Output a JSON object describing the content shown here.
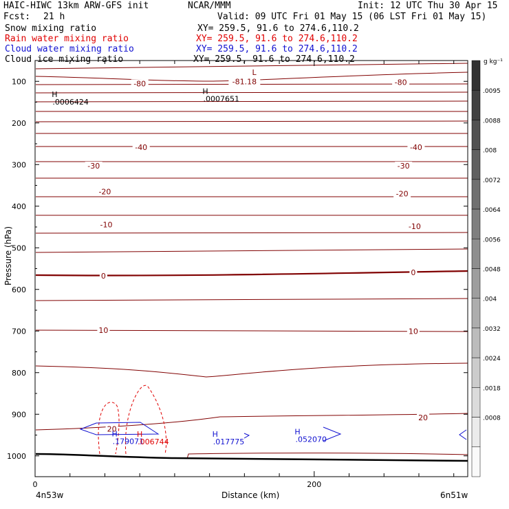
{
  "header": {
    "model": "HAIC-HIWC 13km ARW-GFS init",
    "org": "NCAR/MMM",
    "init": "Init: 12 UTC Thu 30 Apr 15",
    "fcst_label": "Fcst:",
    "fcst_value": "21 h",
    "valid": "Valid: 09 UTC Fri 01 May 15 (06 LST Fri 01 May 15)"
  },
  "fields": [
    {
      "name": "Snow mixing ratio",
      "xy": "XY= 259.5, 91.6 to 274.6,110.2",
      "color": "#000000"
    },
    {
      "name": "Rain water mixing ratio",
      "xy": "XY= 259.5, 91.6 to 274.6,110.2",
      "color": "#e00000"
    },
    {
      "name": "Cloud water mixing ratio",
      "xy": "XY= 259.5, 91.6 to 274.6,110.2",
      "color": "#1010d0"
    },
    {
      "name": "Cloud ice mixing ratio",
      "xy": "XY= 259.5, 91.6 to 274.6,110.2",
      "color": "#000000"
    }
  ],
  "chart_data": {
    "type": "contour cross-section",
    "xlabel": "Distance (km)",
    "ylabel": "Pressure (hPa)",
    "x_ticks": [
      0,
      200
    ],
    "x_range_km": [
      0,
      310
    ],
    "y_ticks": [
      100,
      200,
      300,
      400,
      500,
      600,
      700,
      800,
      900,
      1000
    ],
    "y_range_hPa": [
      1050,
      50
    ],
    "left_endpoint_label": "4n53w",
    "right_endpoint_label": "6n51w",
    "colorbar": {
      "unit": "g kg⁻¹",
      "labels": [
        ".0095",
        ".0088",
        ".008",
        ".0072",
        ".0064",
        ".0056",
        ".0048",
        ".004",
        ".0032",
        ".0024",
        ".0018",
        ".0008"
      ]
    },
    "temperature_contour_labels": [
      {
        "text": "-80",
        "x_km": 75,
        "p_hPa": 105
      },
      {
        "text": "-81.18",
        "x_km": 150,
        "p_hPa": 100
      },
      {
        "text": "-80",
        "x_km": 262,
        "p_hPa": 102
      },
      {
        "text": "-40",
        "x_km": 76,
        "p_hPa": 258
      },
      {
        "text": "-40",
        "x_km": 273,
        "p_hPa": 258
      },
      {
        "text": "-30",
        "x_km": 42,
        "p_hPa": 303
      },
      {
        "text": "-30",
        "x_km": 264,
        "p_hPa": 303
      },
      {
        "text": "-20",
        "x_km": 50,
        "p_hPa": 365
      },
      {
        "text": "-20",
        "x_km": 263,
        "p_hPa": 370
      },
      {
        "text": "-10",
        "x_km": 51,
        "p_hPa": 444
      },
      {
        "text": "-10",
        "x_km": 272,
        "p_hPa": 448
      },
      {
        "text": "0",
        "x_km": 49,
        "p_hPa": 567
      },
      {
        "text": "0",
        "x_km": 271,
        "p_hPa": 559
      },
      {
        "text": "10",
        "x_km": 49,
        "p_hPa": 698
      },
      {
        "text": "10",
        "x_km": 271,
        "p_hPa": 700
      },
      {
        "text": "20",
        "x_km": 55,
        "p_hPa": 935
      },
      {
        "text": "20",
        "x_km": 278,
        "p_hPa": 908
      }
    ],
    "extrema": [
      {
        "mark": "L",
        "value": "",
        "x_km": 157,
        "p_hPa": 85,
        "color": "#800000"
      },
      {
        "mark": "H",
        "value": ".0006424",
        "x_km": 14,
        "p_hPa": 138,
        "color": "#000000"
      },
      {
        "mark": "H",
        "value": ".0007651",
        "x_km": 122,
        "p_hPa": 130,
        "color": "#000000"
      },
      {
        "mark": "H",
        "value": ".179071",
        "x_km": 57,
        "p_hPa": 953,
        "color": "#1010d0"
      },
      {
        "mark": "H",
        "value": ".006744",
        "x_km": 75,
        "p_hPa": 954,
        "color": "#e00000"
      },
      {
        "mark": "H",
        "value": ".017775",
        "x_km": 129,
        "p_hPa": 954,
        "color": "#1010d0"
      },
      {
        "mark": "H",
        "value": ".052070",
        "x_km": 188,
        "p_hPa": 948,
        "color": "#1010d0"
      }
    ]
  }
}
